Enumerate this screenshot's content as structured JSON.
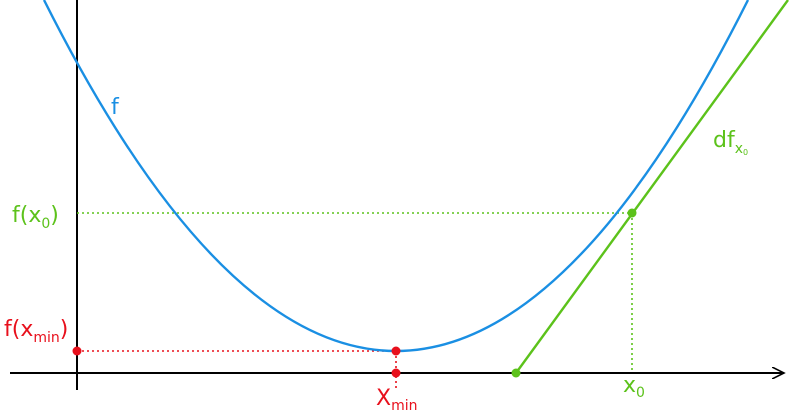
{
  "labels": {
    "curve": "f",
    "tangent": "df",
    "tangent_sub": "x",
    "tangent_subsub": "0",
    "fx0_main": "f(x",
    "fx0_sub": "0",
    "fx0_close": ")",
    "fxmin_main": "f(x",
    "fxmin_sub": "min",
    "fxmin_close": ")",
    "xmin_main": "X",
    "xmin_sub": "min",
    "x0_main": "x",
    "x0_sub": "0"
  },
  "colors": {
    "curve": "#1a8fe3",
    "tangent": "#5cc21b",
    "minimum": "#e8101c",
    "axis": "#000000"
  }
}
